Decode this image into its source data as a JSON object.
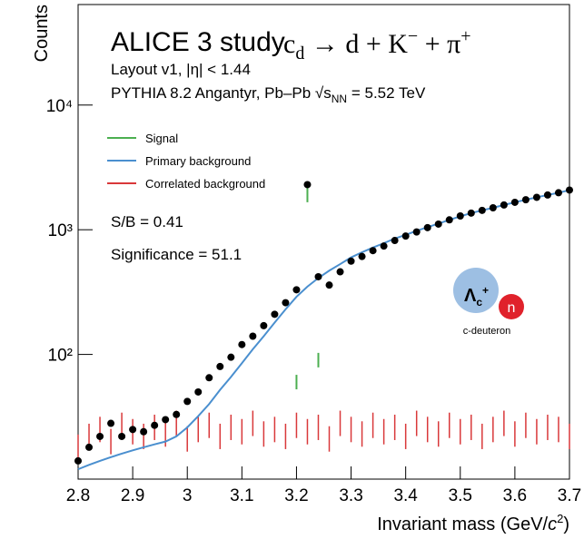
{
  "chart_data": {
    "type": "histogram-points",
    "title": "ALICE 3 study",
    "reaction": [
      "c",
      "d",
      " → d + K",
      "−",
      " + π",
      "+"
    ],
    "subtitle": "Layout v1, |η| < 1.44",
    "generator": [
      "PYTHIA 8.2 Angantyr, Pb–Pb ",
      "√s",
      "NN",
      " = 5.52 TeV"
    ],
    "annotations": [
      "S/B = 0.41",
      "Significance = 51.1"
    ],
    "inset": {
      "hadron": "Λ",
      "hadron_sub": "c",
      "hadron_sup": "+",
      "nucleon": "n",
      "label": "c-deuteron"
    },
    "x_label": [
      "Invariant mass (GeV/",
      "c",
      "2",
      ")"
    ],
    "y_label": "Counts",
    "xlim": [
      2.8,
      3.7
    ],
    "xticks": [
      2.8,
      2.9,
      3,
      3.1,
      3.2,
      3.3,
      3.4,
      3.5,
      3.6,
      3.7
    ],
    "ylim": [
      10,
      64000
    ],
    "ylog": true,
    "yticks": [
      {
        "value": 100,
        "label": "10²"
      },
      {
        "value": 1000,
        "label": "10³"
      },
      {
        "value": 10000,
        "label": "10⁴"
      }
    ],
    "x": [
      2.8,
      2.82,
      2.84,
      2.86,
      2.88,
      2.9,
      2.92,
      2.94,
      2.96,
      2.98,
      3.0,
      3.02,
      3.04,
      3.06,
      3.08,
      3.1,
      3.12,
      3.14,
      3.16,
      3.18,
      3.2,
      3.22,
      3.24,
      3.26,
      3.28,
      3.3,
      3.32,
      3.34,
      3.36,
      3.38,
      3.4,
      3.42,
      3.44,
      3.46,
      3.48,
      3.5,
      3.52,
      3.54,
      3.56,
      3.58,
      3.6,
      3.62,
      3.64,
      3.66,
      3.68,
      3.7
    ],
    "data_points": {
      "color": "#000000",
      "values": [
        14,
        18,
        22,
        28,
        22,
        25,
        24,
        27,
        30,
        33,
        42,
        50,
        65,
        80,
        95,
        120,
        140,
        170,
        210,
        260,
        330,
        2300,
        420,
        360,
        460,
        560,
        610,
        680,
        740,
        820,
        890,
        960,
        1040,
        1110,
        1200,
        1290,
        1360,
        1430,
        1500,
        1580,
        1660,
        1740,
        1820,
        1900,
        1980,
        2080
      ]
    },
    "series": [
      {
        "name": "Signal",
        "color": "#4caf50",
        "style": "dash",
        "values": [
          null,
          null,
          null,
          null,
          null,
          null,
          null,
          null,
          null,
          null,
          null,
          null,
          null,
          null,
          null,
          null,
          null,
          null,
          null,
          null,
          60,
          1900,
          90,
          null,
          null,
          null,
          null,
          null,
          null,
          null,
          null,
          null,
          null,
          null,
          null,
          null,
          null,
          null,
          null,
          null,
          null,
          null,
          null,
          null,
          null,
          null
        ]
      },
      {
        "name": "Primary background",
        "color": "#4a8fcf",
        "style": "line",
        "values": [
          12,
          13,
          14,
          15,
          16,
          17,
          18,
          19,
          20,
          22,
          26,
          32,
          40,
          52,
          66,
          85,
          110,
          140,
          180,
          230,
          290,
          350,
          410,
          470,
          530,
          600,
          660,
          720,
          780,
          850,
          910,
          980,
          1050,
          1120,
          1200,
          1280,
          1360,
          1430,
          1500,
          1580,
          1660,
          1740,
          1820,
          1900,
          1980,
          2080
        ]
      },
      {
        "name": "Correlated background",
        "color": "#d9383a",
        "style": "bars",
        "values": [
          18,
          22,
          25,
          20,
          27,
          24,
          22,
          26,
          23,
          28,
          21,
          25,
          27,
          22,
          26,
          24,
          28,
          23,
          25,
          22,
          27,
          24,
          26,
          21,
          28,
          25,
          23,
          27,
          24,
          26,
          22,
          28,
          25,
          23,
          27,
          24,
          26,
          22,
          25,
          28,
          23,
          27,
          24,
          26,
          25,
          22
        ]
      }
    ]
  }
}
